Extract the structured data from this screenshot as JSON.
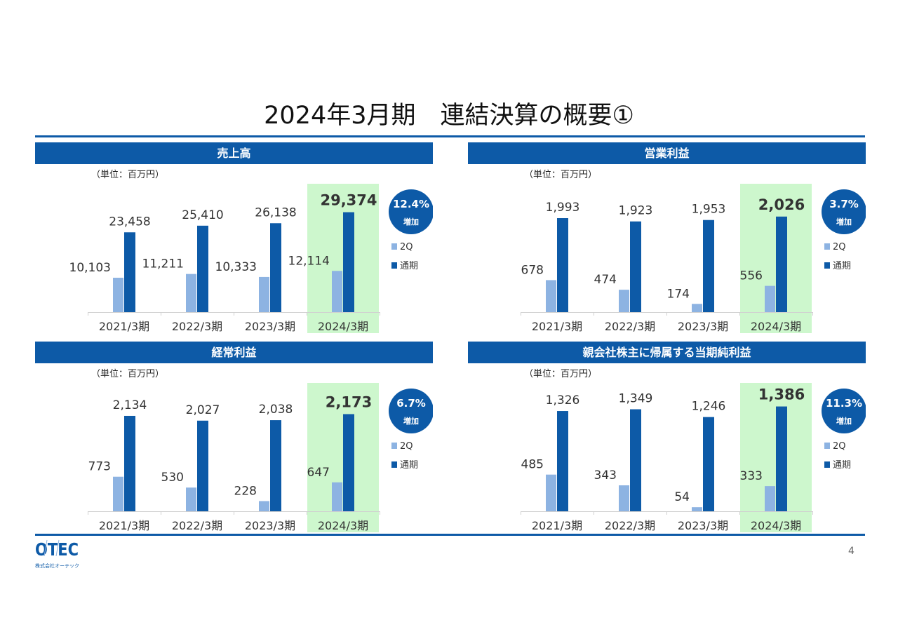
{
  "title": "2024年3月期　連結決算の概要①",
  "page_number": "4",
  "logo": {
    "text": "OTEC",
    "subtext": "株式会社オーテック"
  },
  "colors": {
    "accent": "#0d5aa7",
    "q2": "#8db3e2",
    "full": "#0d5aa7",
    "highlight": "#cdf7cd"
  },
  "chart_data": [
    {
      "type": "bar",
      "title": "売上高",
      "unit": "（単位：百万円）",
      "categories": [
        "2021/3期",
        "2022/3期",
        "2023/3期",
        "2024/3期"
      ],
      "series": [
        {
          "name": "2Q",
          "values": [
            10103,
            11211,
            10333,
            12114
          ],
          "labels": [
            "10,103",
            "11,211",
            "10,333",
            "12,114"
          ]
        },
        {
          "name": "通期",
          "values": [
            23458,
            25410,
            26138,
            29374
          ],
          "labels": [
            "23,458",
            "25,410",
            "26,138",
            "29,374"
          ]
        }
      ],
      "ylim": [
        0,
        33000
      ],
      "badge": {
        "value": "12.4%",
        "text": "増加"
      },
      "highlight_category": "2024/3期"
    },
    {
      "type": "bar",
      "title": "営業利益",
      "unit": "（単位：百万円）",
      "categories": [
        "2021/3期",
        "2022/3期",
        "2023/3期",
        "2024/3期"
      ],
      "series": [
        {
          "name": "2Q",
          "values": [
            678,
            474,
            174,
            556
          ],
          "labels": [
            "678",
            "474",
            "174",
            "556"
          ]
        },
        {
          "name": "通期",
          "values": [
            1993,
            1923,
            1953,
            2026
          ],
          "labels": [
            "1,993",
            "1,923",
            "1,953",
            "2,026"
          ]
        }
      ],
      "ylim": [
        0,
        2380
      ],
      "badge": {
        "value": "3.7%",
        "text": "増加"
      },
      "highlight_category": "2024/3期"
    },
    {
      "type": "bar",
      "title": "経常利益",
      "unit": "（単位：百万円）",
      "categories": [
        "2021/3期",
        "2022/3期",
        "2023/3期",
        "2024/3期"
      ],
      "series": [
        {
          "name": "2Q",
          "values": [
            773,
            530,
            228,
            647
          ],
          "labels": [
            "773",
            "530",
            "228",
            "647"
          ]
        },
        {
          "name": "通期",
          "values": [
            2134,
            2027,
            2038,
            2173
          ],
          "labels": [
            "2,134",
            "2,027",
            "2,038",
            "2,173"
          ]
        }
      ],
      "ylim": [
        0,
        2510
      ],
      "badge": {
        "value": "6.7%",
        "text": "増加"
      },
      "highlight_category": "2024/3期"
    },
    {
      "type": "bar",
      "title": "親会社株主に帰属する当期純利益",
      "unit": "（単位：百万円）",
      "categories": [
        "2021/3期",
        "2022/3期",
        "2023/3期",
        "2024/3期"
      ],
      "series": [
        {
          "name": "2Q",
          "values": [
            485,
            343,
            54,
            333
          ],
          "labels": [
            "485",
            "343",
            "54",
            "333"
          ]
        },
        {
          "name": "通期",
          "values": [
            1326,
            1349,
            1246,
            1386
          ],
          "labels": [
            "1,326",
            "1,349",
            "1,246",
            "1,386"
          ]
        }
      ],
      "ylim": [
        0,
        1484
      ],
      "badge": {
        "value": "11.3%",
        "text": "増加"
      },
      "highlight_category": "2024/3期"
    }
  ]
}
